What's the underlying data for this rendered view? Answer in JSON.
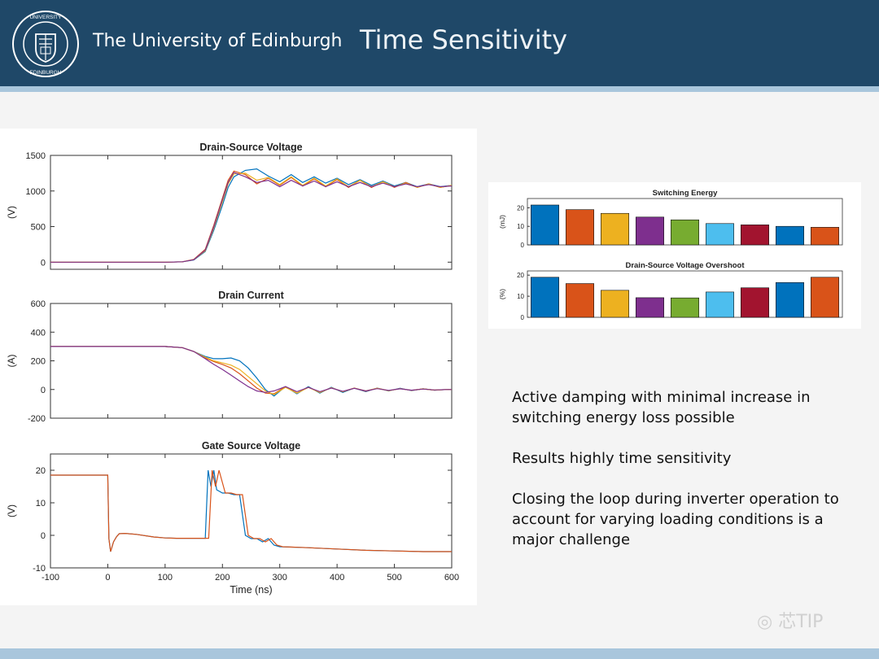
{
  "header": {
    "university": "The University of Edinburgh",
    "title": "Time Sensitivity",
    "logo_text": "THE UNIVERSITY OF EDINBURGH"
  },
  "colors": [
    "#0072bd",
    "#d95319",
    "#edb120",
    "#7e2f8e",
    "#77ac30",
    "#4dbeee",
    "#a2142f",
    "#0072bd",
    "#d95319"
  ],
  "chart_data": [
    {
      "type": "line",
      "title": "Drain-Source Voltage",
      "xlabel": "",
      "ylabel": "(V)",
      "xlim": [
        -100,
        600
      ],
      "ylim": [
        -100,
        1500
      ],
      "xticks": [],
      "yticks": [
        0,
        500,
        1000,
        1500
      ],
      "ytick_labels": [
        "0",
        "500",
        "1000",
        "1500"
      ],
      "series": [
        {
          "x": [
            -100,
            100,
            130,
            150,
            170,
            185,
            200,
            210,
            220,
            240,
            260,
            280,
            300,
            320,
            340,
            360,
            380,
            400,
            420,
            440,
            460,
            480,
            500,
            520,
            540,
            560,
            580,
            600
          ],
          "y": [
            0,
            0,
            5,
            30,
            150,
            450,
            800,
            1050,
            1200,
            1290,
            1310,
            1210,
            1130,
            1230,
            1120,
            1200,
            1110,
            1180,
            1090,
            1160,
            1080,
            1140,
            1070,
            1120,
            1060,
            1100,
            1060,
            1080
          ]
        },
        {
          "x": [
            -100,
            100,
            130,
            150,
            170,
            185,
            200,
            210,
            220,
            240,
            260,
            280,
            300,
            320,
            340,
            360,
            380,
            400,
            420,
            440,
            460,
            480,
            500,
            520,
            540,
            560,
            580,
            600
          ],
          "y": [
            0,
            0,
            5,
            40,
            180,
            520,
            900,
            1150,
            1280,
            1230,
            1100,
            1180,
            1080,
            1190,
            1070,
            1170,
            1060,
            1160,
            1050,
            1150,
            1050,
            1130,
            1050,
            1120,
            1050,
            1100,
            1050,
            1080
          ]
        },
        {
          "x": [
            -100,
            100,
            130,
            150,
            170,
            185,
            200,
            210,
            220,
            240,
            260,
            280,
            300,
            320,
            340,
            360,
            380,
            400,
            420,
            440,
            460,
            480,
            500,
            520,
            540,
            560,
            580,
            600
          ],
          "y": [
            0,
            0,
            5,
            35,
            160,
            480,
            850,
            1100,
            1240,
            1250,
            1150,
            1190,
            1090,
            1200,
            1080,
            1180,
            1070,
            1170,
            1060,
            1150,
            1060,
            1130,
            1060,
            1110,
            1050,
            1100,
            1050,
            1080
          ]
        },
        {
          "x": [
            -100,
            100,
            130,
            150,
            170,
            185,
            200,
            210,
            220,
            240,
            260,
            280,
            300,
            320,
            340,
            360,
            380,
            400,
            420,
            440,
            460,
            480,
            500,
            520,
            540,
            560,
            580,
            600
          ],
          "y": [
            0,
            0,
            5,
            35,
            170,
            500,
            880,
            1120,
            1260,
            1200,
            1120,
            1150,
            1060,
            1150,
            1070,
            1140,
            1060,
            1130,
            1060,
            1120,
            1060,
            1110,
            1060,
            1100,
            1060,
            1090,
            1060,
            1070
          ]
        }
      ]
    },
    {
      "type": "line",
      "title": "Drain Current",
      "xlabel": "",
      "ylabel": "(A)",
      "xlim": [
        -100,
        600
      ],
      "ylim": [
        -200,
        600
      ],
      "xticks": [],
      "yticks": [
        -200,
        0,
        200,
        400,
        600
      ],
      "ytick_labels": [
        "-200",
        "0",
        "200",
        "400",
        "600"
      ],
      "series": [
        {
          "x": [
            -100,
            100,
            130,
            150,
            170,
            185,
            200,
            215,
            230,
            245,
            260,
            275,
            290,
            310,
            330,
            350,
            370,
            390,
            410,
            430,
            450,
            470,
            490,
            510,
            530,
            550,
            570,
            590,
            600
          ],
          "y": [
            300,
            300,
            292,
            265,
            230,
            215,
            215,
            220,
            200,
            150,
            80,
            0,
            -45,
            20,
            -30,
            20,
            -25,
            15,
            -20,
            10,
            -15,
            10,
            -10,
            8,
            -8,
            5,
            -5,
            0,
            0
          ]
        },
        {
          "x": [
            -100,
            100,
            130,
            150,
            170,
            185,
            200,
            215,
            230,
            245,
            260,
            275,
            290,
            310,
            330,
            350,
            370,
            390,
            410,
            430,
            450,
            470,
            490,
            510,
            530,
            550,
            570,
            590,
            600
          ],
          "y": [
            300,
            300,
            292,
            265,
            220,
            195,
            175,
            150,
            110,
            60,
            10,
            -25,
            -30,
            20,
            -25,
            15,
            -20,
            12,
            -15,
            10,
            -12,
            8,
            -8,
            6,
            -6,
            4,
            -4,
            0,
            0
          ]
        },
        {
          "x": [
            -100,
            100,
            130,
            150,
            170,
            185,
            200,
            215,
            230,
            245,
            260,
            275,
            290,
            310,
            330,
            350,
            370,
            390,
            410,
            430,
            450,
            470,
            490,
            510,
            530,
            550,
            570,
            590,
            600
          ],
          "y": [
            300,
            300,
            292,
            265,
            225,
            200,
            185,
            170,
            140,
            90,
            40,
            -10,
            -35,
            15,
            -25,
            15,
            -20,
            12,
            -15,
            10,
            -10,
            8,
            -8,
            6,
            -6,
            4,
            -4,
            0,
            0
          ]
        },
        {
          "x": [
            -100,
            100,
            130,
            150,
            170,
            185,
            200,
            215,
            230,
            245,
            260,
            275,
            290,
            310,
            330,
            350,
            370,
            390,
            410,
            430,
            450,
            470,
            490,
            510,
            530,
            550,
            570,
            590,
            600
          ],
          "y": [
            300,
            300,
            292,
            265,
            215,
            175,
            140,
            100,
            60,
            20,
            -10,
            -20,
            -10,
            20,
            -15,
            15,
            -15,
            10,
            -12,
            8,
            -10,
            6,
            -6,
            5,
            -5,
            3,
            -3,
            0,
            0
          ]
        }
      ]
    },
    {
      "type": "line",
      "title": "Gate Source Voltage",
      "xlabel": "Time (ns)",
      "ylabel": "(V)",
      "xlim": [
        -100,
        600
      ],
      "ylim": [
        -10,
        25
      ],
      "xticks": [
        -100,
        0,
        100,
        200,
        300,
        400,
        500,
        600
      ],
      "xtick_labels": [
        "-100",
        "0",
        "100",
        "200",
        "300",
        "400",
        "500",
        "600"
      ],
      "yticks": [
        -10,
        0,
        10,
        20
      ],
      "ytick_labels": [
        "-10",
        "0",
        "10",
        "20"
      ],
      "series": [
        {
          "x": [
            -100,
            0,
            2,
            5,
            10,
            15,
            20,
            30,
            50,
            80,
            100,
            120,
            150,
            170,
            175,
            180,
            185,
            190,
            200,
            210,
            220,
            230,
            240,
            250,
            260,
            270,
            280,
            290,
            300,
            350,
            400,
            450,
            500,
            550,
            600
          ],
          "y": [
            18.5,
            18.5,
            -1,
            -5,
            -2,
            -0.5,
            0.5,
            0.6,
            0.3,
            -0.5,
            -0.8,
            -0.9,
            -0.9,
            -0.9,
            20,
            15,
            20,
            14,
            13,
            13,
            12.5,
            12.5,
            0,
            -1,
            -1,
            -2,
            -1,
            -3,
            -3.5,
            -3.8,
            -4.2,
            -4.6,
            -4.8,
            -5,
            -5
          ]
        },
        {
          "x": [
            -100,
            0,
            2,
            5,
            10,
            15,
            20,
            30,
            50,
            80,
            100,
            120,
            150,
            170,
            176,
            182,
            188,
            194,
            205,
            215,
            225,
            235,
            245,
            255,
            265,
            275,
            285,
            295,
            305,
            350,
            400,
            450,
            500,
            550,
            600
          ],
          "y": [
            18.5,
            18.5,
            -1,
            -5,
            -2,
            -0.5,
            0.5,
            0.6,
            0.3,
            -0.5,
            -0.8,
            -0.9,
            -0.9,
            -0.9,
            -0.9,
            20,
            15,
            20,
            13,
            13,
            12.5,
            12.5,
            0,
            -1,
            -1,
            -2,
            -1,
            -3,
            -3.5,
            -3.8,
            -4.2,
            -4.6,
            -4.8,
            -5,
            -5
          ]
        }
      ]
    },
    {
      "type": "bar",
      "title": "Switching Energy",
      "ylabel": "(mJ)",
      "ylim": [
        0,
        25
      ],
      "yticks": [
        0,
        10,
        20
      ],
      "ytick_labels": [
        "0",
        "10",
        "20"
      ],
      "values": [
        21.5,
        19,
        17,
        15,
        13.5,
        11.5,
        10.8,
        10,
        9.5
      ]
    },
    {
      "type": "bar",
      "title": "Drain-Source Voltage Overshoot",
      "ylabel": "(%)",
      "ylim": [
        0,
        22
      ],
      "yticks": [
        0,
        10,
        20
      ],
      "ytick_labels": [
        "0",
        "10",
        "20"
      ],
      "values": [
        19,
        16,
        12.8,
        9.3,
        9.2,
        12,
        14,
        16.5,
        19
      ]
    }
  ],
  "bullets": [
    "Active damping with minimal increase in switching energy loss possible",
    "Results highly time sensitivity",
    "Closing the loop during inverter operation to account for varying loading conditions is a major challenge"
  ],
  "watermark": "芯TIP"
}
